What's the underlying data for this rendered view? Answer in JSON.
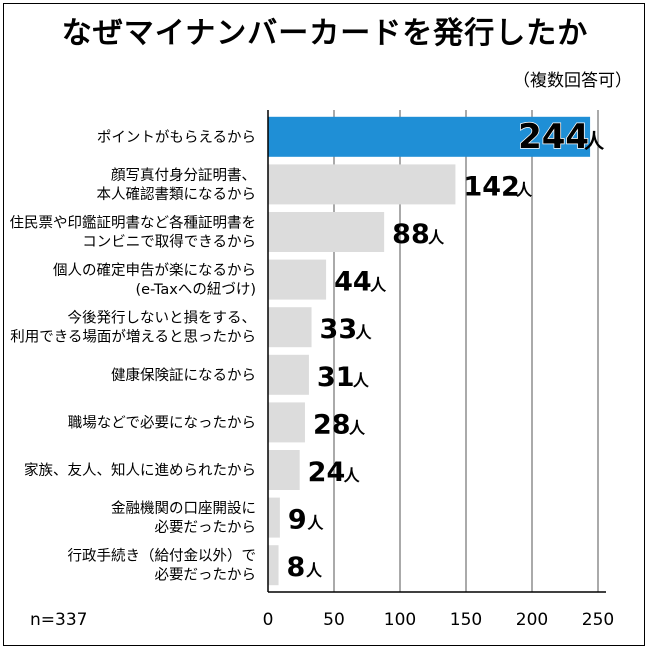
{
  "chart_data": {
    "type": "bar",
    "orientation": "horizontal",
    "title": "なぜマイナンバーカードを発行したか",
    "subtitle": "（複数回答可）",
    "unit": "人",
    "categories": [
      [
        "ポイントがもらえるから"
      ],
      [
        "顔写真付身分証明書、",
        "本人確認書類になるから"
      ],
      [
        "住民票や印鑑証明書など各種証明書を",
        "コンビニで取得できるから"
      ],
      [
        "個人の確定申告が楽になるから",
        "(e-Taxへの紐づけ)"
      ],
      [
        "今後発行しないと損をする、",
        "利用できる場面が増えると思ったから"
      ],
      [
        "健康保険証になるから"
      ],
      [
        "職場などで必要になったから"
      ],
      [
        "家族、友人、知人に進められたから"
      ],
      [
        "金融機関の口座開設に",
        "必要だったから"
      ],
      [
        "行政手続き（給付金以外）で",
        "必要だったから"
      ]
    ],
    "values": [
      244,
      142,
      88,
      44,
      33,
      31,
      28,
      24,
      9,
      8
    ],
    "value_labels": [
      "244",
      "142",
      "88",
      "44",
      "33",
      "31",
      "28",
      "24",
      "9",
      "8"
    ],
    "highlight_index": 0,
    "xlim": [
      0,
      250
    ],
    "xticks": [
      0,
      50,
      100,
      150,
      200,
      250
    ],
    "sample_note": "n=337",
    "colors": {
      "highlight_bar": "#1f8fd6",
      "highlight_label": "#1f8fd6",
      "bar": "#dcdcdc",
      "axis": "#000000",
      "grid": "#555555"
    }
  }
}
